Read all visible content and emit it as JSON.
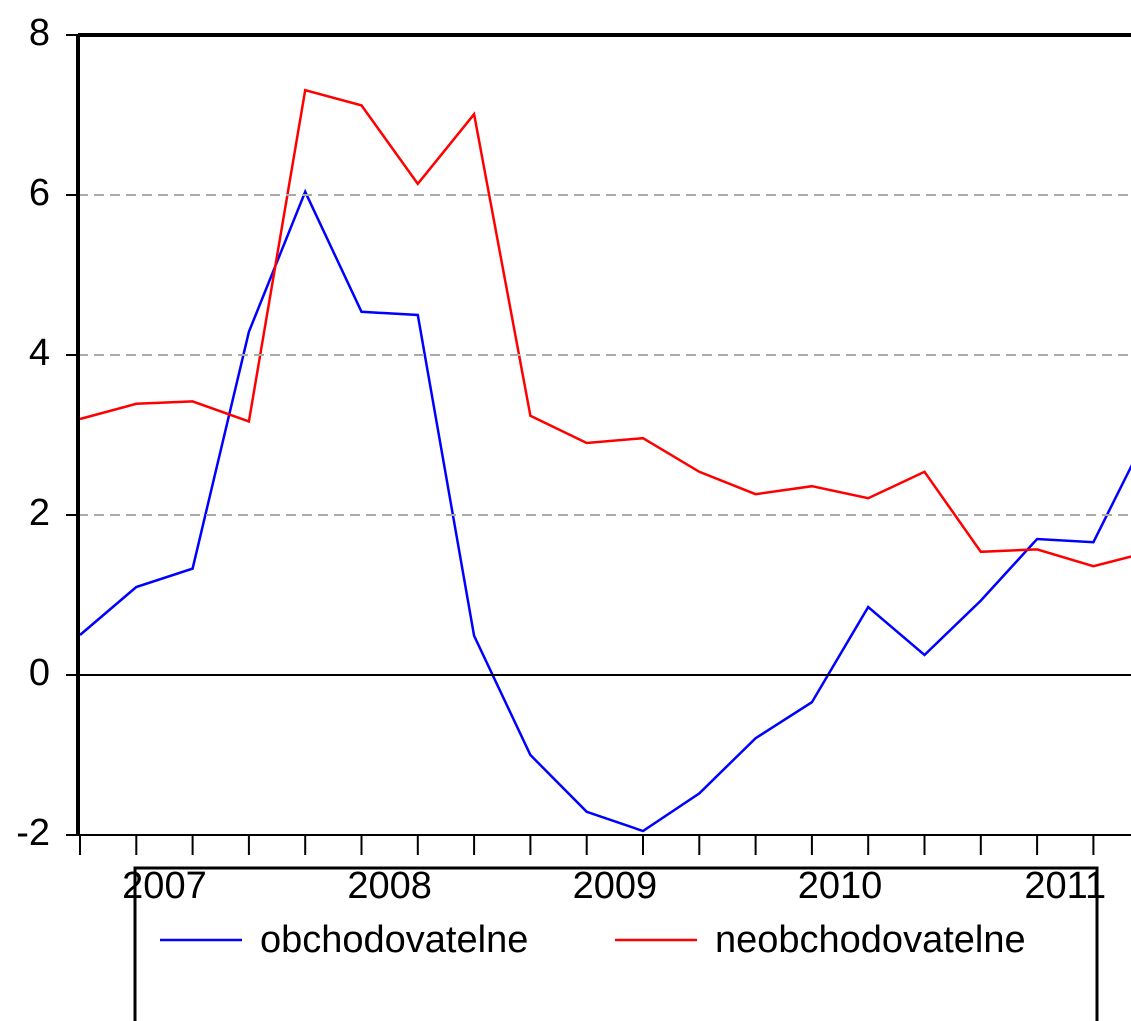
{
  "chart_data": {
    "type": "line",
    "categories": [
      null,
      null,
      null,
      null,
      null,
      null,
      null,
      null,
      null,
      null,
      null,
      null,
      null,
      null,
      null,
      null,
      null,
      null,
      null,
      null
    ],
    "x_year_labels": [
      "2007",
      "2008",
      "2009",
      "2010",
      "2011"
    ],
    "series": [
      {
        "name": "obchodovatelne",
        "color": "#0000ff",
        "values": [
          0.5,
          1.1,
          1.33,
          4.29,
          6.04,
          4.54,
          4.5,
          0.49,
          -1.0,
          -1.71,
          -1.95,
          -1.48,
          -0.79,
          -0.34,
          0.85,
          0.25,
          0.93,
          1.7,
          1.66,
          3.07
        ]
      },
      {
        "name": "neobchodovatelne",
        "color": "#ff0000",
        "values": [
          3.2,
          3.39,
          3.42,
          3.17,
          7.31,
          7.12,
          6.14,
          7.01,
          3.24,
          2.9,
          2.96,
          2.54,
          2.26,
          2.36,
          2.21,
          2.54,
          1.54,
          1.57,
          1.36,
          1.54
        ]
      }
    ],
    "ylim": [
      -2,
      8
    ],
    "yticks": [
      -2,
      0,
      2,
      4,
      6,
      8
    ],
    "grid": true
  }
}
